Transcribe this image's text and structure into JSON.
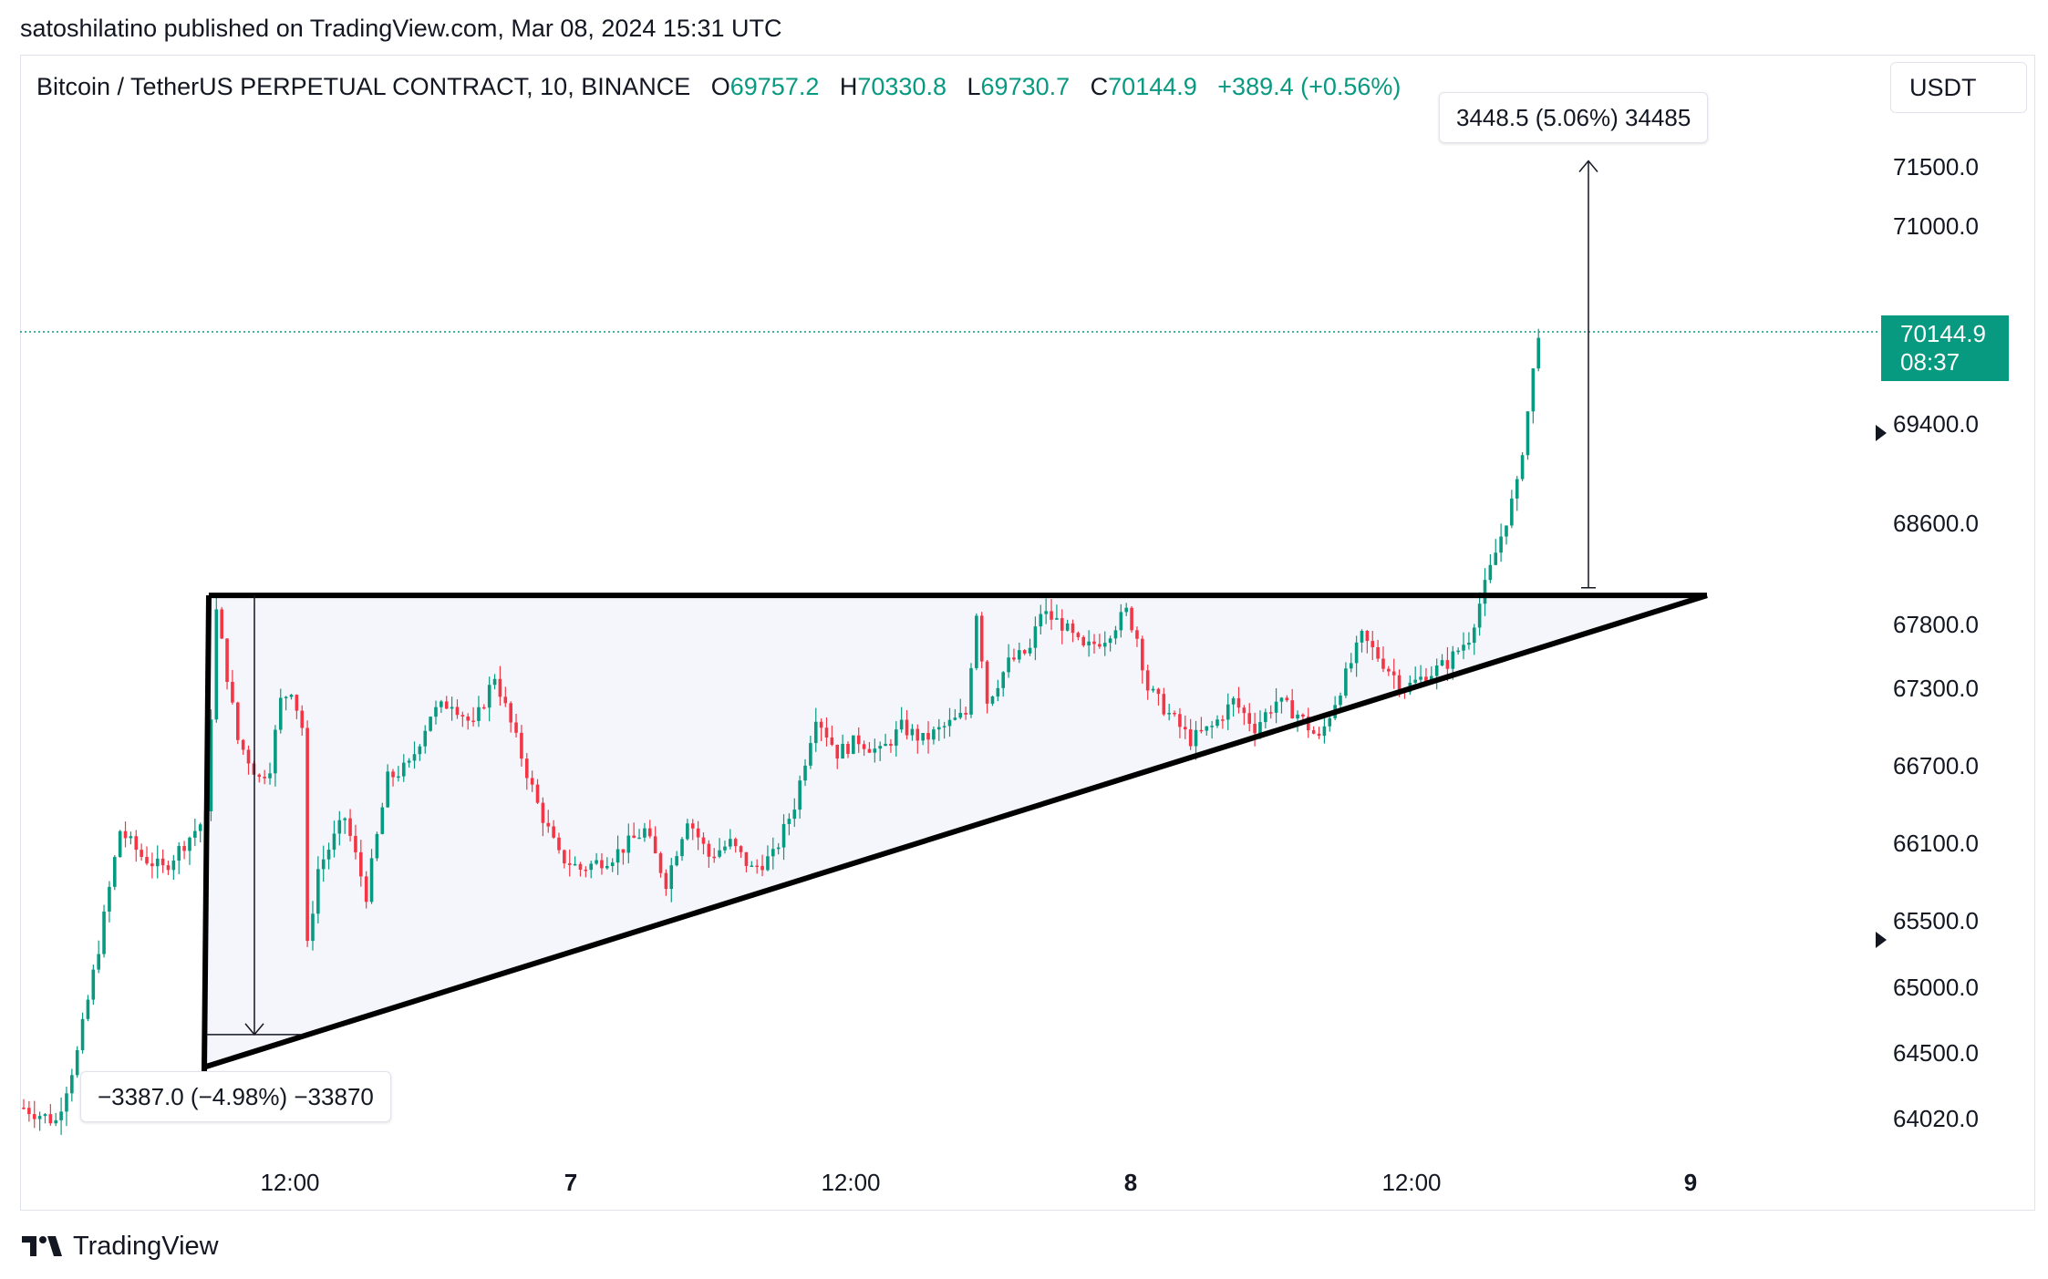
{
  "header": {
    "publisher_line": "satoshilatino published on TradingView.com, Mar 08, 2024 15:31 UTC"
  },
  "legend": {
    "symbol": "Bitcoin / TetherUS PERPETUAL CONTRACT, 10, BINANCE",
    "o_key": "O",
    "o_val": "69757.2",
    "h_key": "H",
    "h_val": "70330.8",
    "l_key": "L",
    "l_val": "69730.7",
    "c_key": "C",
    "c_val": "70144.9",
    "change": "+389.4 (+0.56%)"
  },
  "currency_button": "USDT",
  "last_price": {
    "value": "70144.9",
    "countdown": "08:37"
  },
  "measure_up_label": "3448.5 (5.06%) 34485",
  "measure_down_label": "−3387.0 (−4.98%) −33870",
  "footer": {
    "brand": "TradingView"
  },
  "colors": {
    "up": "#089981",
    "down": "#F23645",
    "text": "#131722"
  },
  "chart_data": {
    "type": "candlestick",
    "price_axis_ticks": [
      "71500.0",
      "71000.0",
      "69400.0",
      "68600.0",
      "67800.0",
      "67300.0",
      "66700.0",
      "66100.0",
      "65500.0",
      "65000.0",
      "64500.0",
      "64020.0"
    ],
    "time_axis_ticks": [
      "12:00",
      "7",
      "12:00",
      "8",
      "12:00",
      "9"
    ],
    "last_price": 70144.9,
    "drawings": {
      "ascending_triangle": {
        "top_resistance": 68030,
        "apex_price": 68030,
        "low_start_price": 64400
      },
      "measure_up": {
        "from": 68090,
        "to": 71550,
        "label": "3448.5 (5.06%) 34485"
      },
      "measure_down": {
        "from": 68030,
        "to": 64640,
        "label": "−3387.0 (−4.98%) −33870"
      }
    },
    "price_path": [
      [
        0,
        64100
      ],
      [
        6,
        64000
      ],
      [
        10,
        64500
      ],
      [
        14,
        65300
      ],
      [
        18,
        66200
      ],
      [
        22,
        66000
      ],
      [
        26,
        65900
      ],
      [
        30,
        66100
      ],
      [
        34,
        66300
      ],
      [
        36,
        67900
      ],
      [
        40,
        66900
      ],
      [
        44,
        66600
      ],
      [
        46,
        66700
      ],
      [
        48,
        67200
      ],
      [
        50,
        67300
      ],
      [
        52,
        67000
      ],
      [
        53,
        65300
      ],
      [
        55,
        65900
      ],
      [
        60,
        66300
      ],
      [
        64,
        65700
      ],
      [
        68,
        66600
      ],
      [
        72,
        66700
      ],
      [
        76,
        67100
      ],
      [
        80,
        67200
      ],
      [
        84,
        67000
      ],
      [
        88,
        67400
      ],
      [
        92,
        66900
      ],
      [
        96,
        66400
      ],
      [
        100,
        66000
      ],
      [
        104,
        65900
      ],
      [
        110,
        66000
      ],
      [
        116,
        66200
      ],
      [
        120,
        65800
      ],
      [
        124,
        66300
      ],
      [
        128,
        66000
      ],
      [
        132,
        66100
      ],
      [
        136,
        65900
      ],
      [
        140,
        66000
      ],
      [
        144,
        66400
      ],
      [
        148,
        67100
      ],
      [
        152,
        66800
      ],
      [
        156,
        66900
      ],
      [
        160,
        66800
      ],
      [
        164,
        67000
      ],
      [
        168,
        66900
      ],
      [
        172,
        67000
      ],
      [
        176,
        67100
      ],
      [
        178,
        67900
      ],
      [
        180,
        67200
      ],
      [
        184,
        67500
      ],
      [
        188,
        67600
      ],
      [
        190,
        67900
      ],
      [
        194,
        67800
      ],
      [
        198,
        67600
      ],
      [
        202,
        67700
      ],
      [
        206,
        67900
      ],
      [
        208,
        67700
      ],
      [
        210,
        67300
      ],
      [
        214,
        67100
      ],
      [
        218,
        66900
      ],
      [
        222,
        67000
      ],
      [
        226,
        67200
      ],
      [
        230,
        67000
      ],
      [
        234,
        67200
      ],
      [
        238,
        67100
      ],
      [
        242,
        66900
      ],
      [
        246,
        67300
      ],
      [
        250,
        67700
      ],
      [
        254,
        67500
      ],
      [
        258,
        67300
      ],
      [
        262,
        67400
      ],
      [
        266,
        67500
      ],
      [
        270,
        67700
      ],
      [
        273,
        68100
      ],
      [
        276,
        68500
      ],
      [
        279,
        68900
      ],
      [
        281,
        69500
      ],
      [
        283,
        70150
      ]
    ]
  }
}
